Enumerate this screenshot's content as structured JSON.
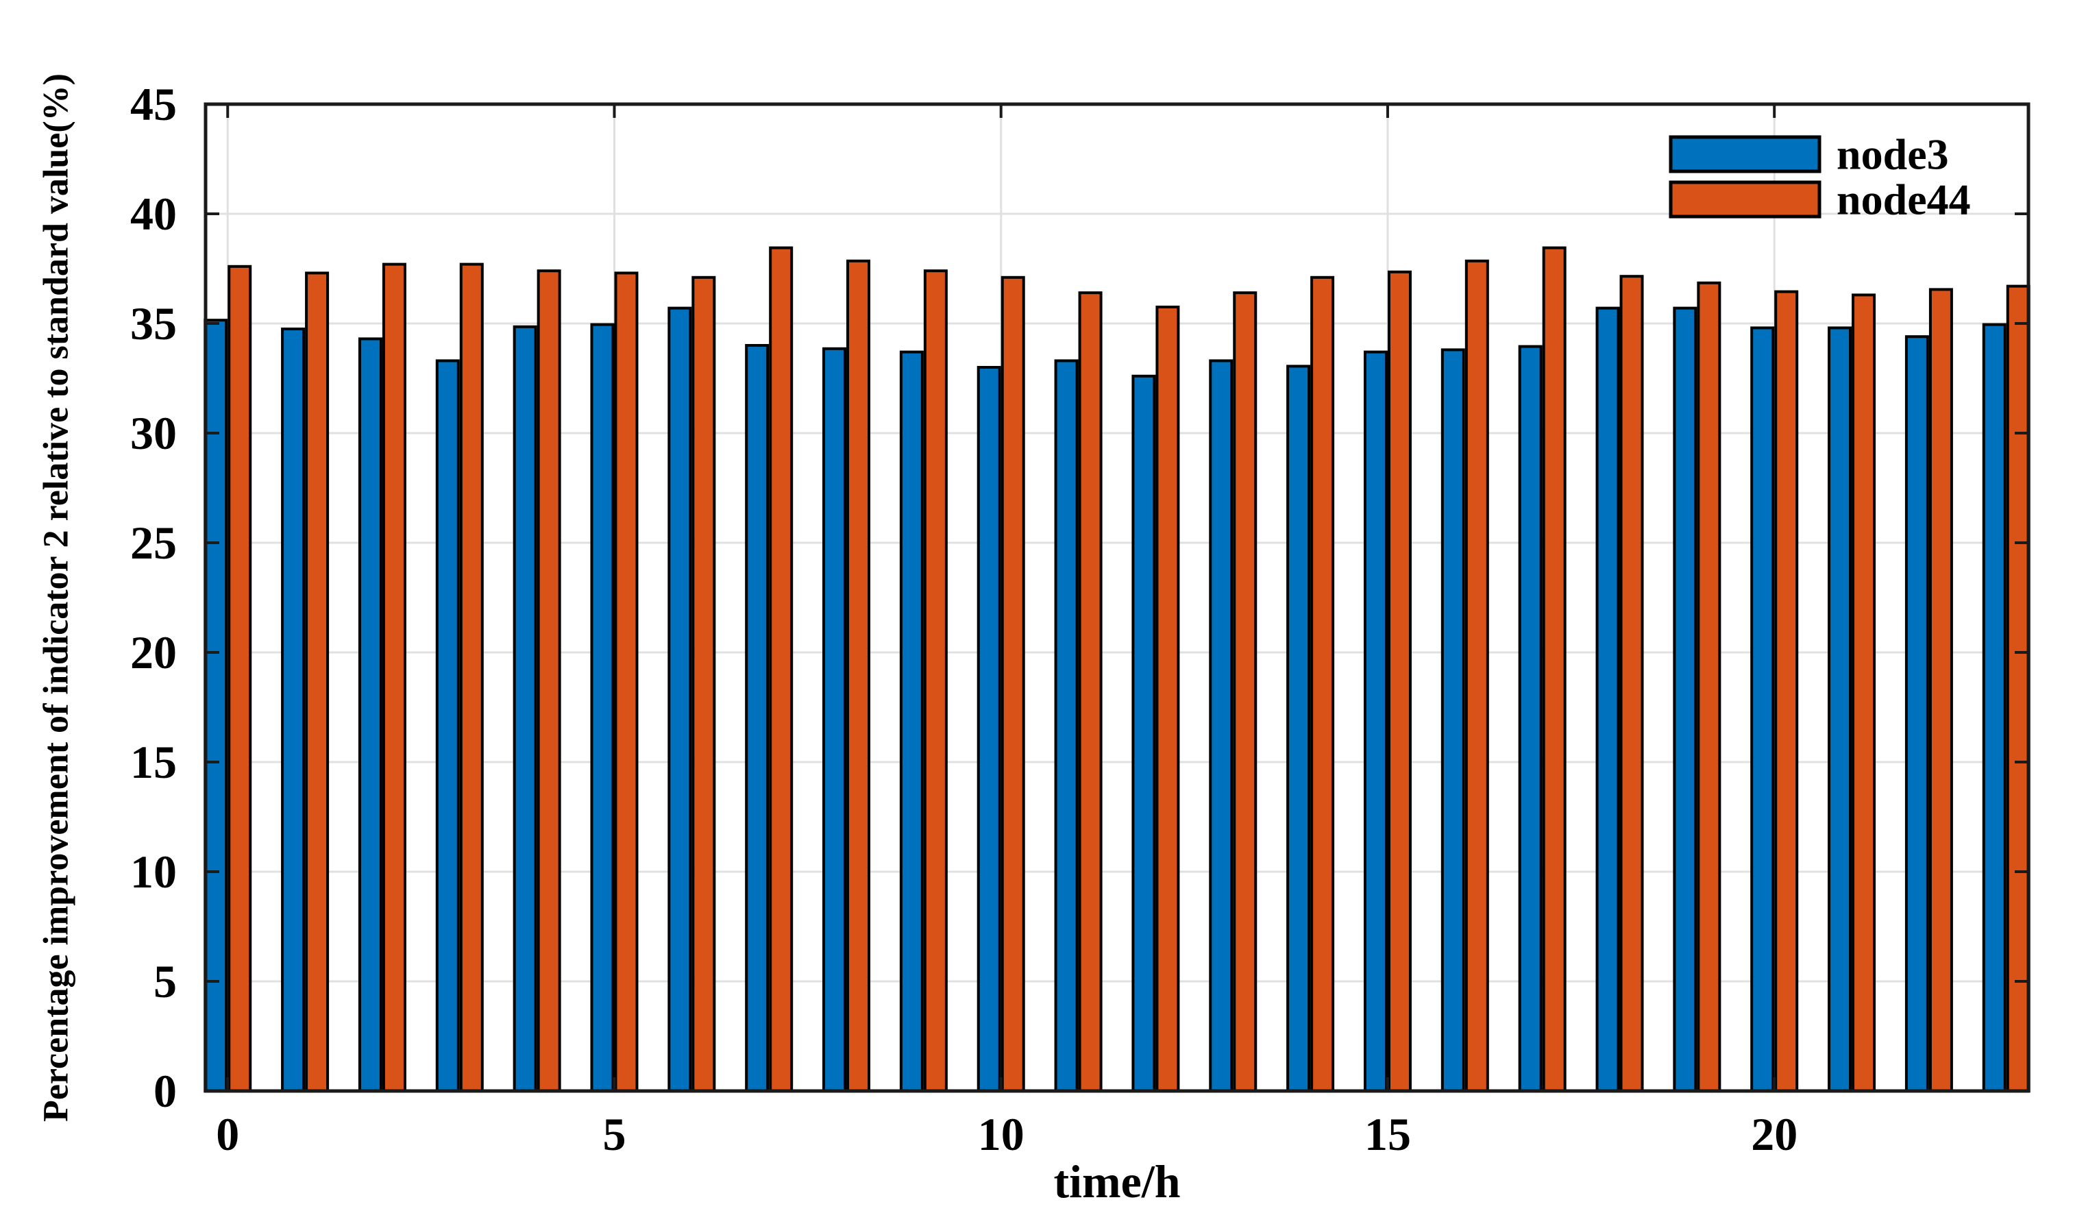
{
  "chart_data": {
    "type": "bar",
    "title": "",
    "xlabel": "time/h",
    "ylabel": "Percentage improvement of indicator 2 relative to standard value(%)",
    "categories": [
      0,
      1,
      2,
      3,
      4,
      5,
      6,
      7,
      8,
      9,
      10,
      11,
      12,
      13,
      14,
      15,
      16,
      17,
      18,
      19,
      20,
      21,
      22,
      23
    ],
    "series": [
      {
        "name": "node3",
        "color": "#0072BD",
        "values": [
          35.15,
          34.75,
          34.3,
          33.3,
          34.85,
          34.95,
          35.7,
          34.0,
          33.85,
          33.7,
          33.0,
          33.3,
          32.6,
          33.3,
          33.05,
          33.7,
          33.8,
          33.95,
          35.7,
          35.7,
          34.8,
          34.8,
          34.4,
          34.95
        ]
      },
      {
        "name": "node44",
        "color": "#D95319",
        "values": [
          37.6,
          37.3,
          37.7,
          37.7,
          37.4,
          37.3,
          37.1,
          38.45,
          37.85,
          37.4,
          37.1,
          36.4,
          35.75,
          36.4,
          37.1,
          37.35,
          37.85,
          38.45,
          37.15,
          36.85,
          36.45,
          36.3,
          36.55,
          36.7
        ]
      }
    ],
    "ylim": [
      0,
      45
    ],
    "xlim": [
      -0.2857,
      23.2857
    ],
    "yticks": [
      0,
      5,
      10,
      15,
      20,
      25,
      30,
      35,
      40,
      45
    ],
    "xticks": [
      0,
      5,
      10,
      15,
      20
    ],
    "grid": true,
    "legend": {
      "position": "top-right"
    },
    "colors": {
      "axis": "#1a1a1a",
      "grid": "#e0e0e0",
      "bar_edge": "#000000",
      "background": "#ffffff",
      "text": "#000000"
    }
  }
}
